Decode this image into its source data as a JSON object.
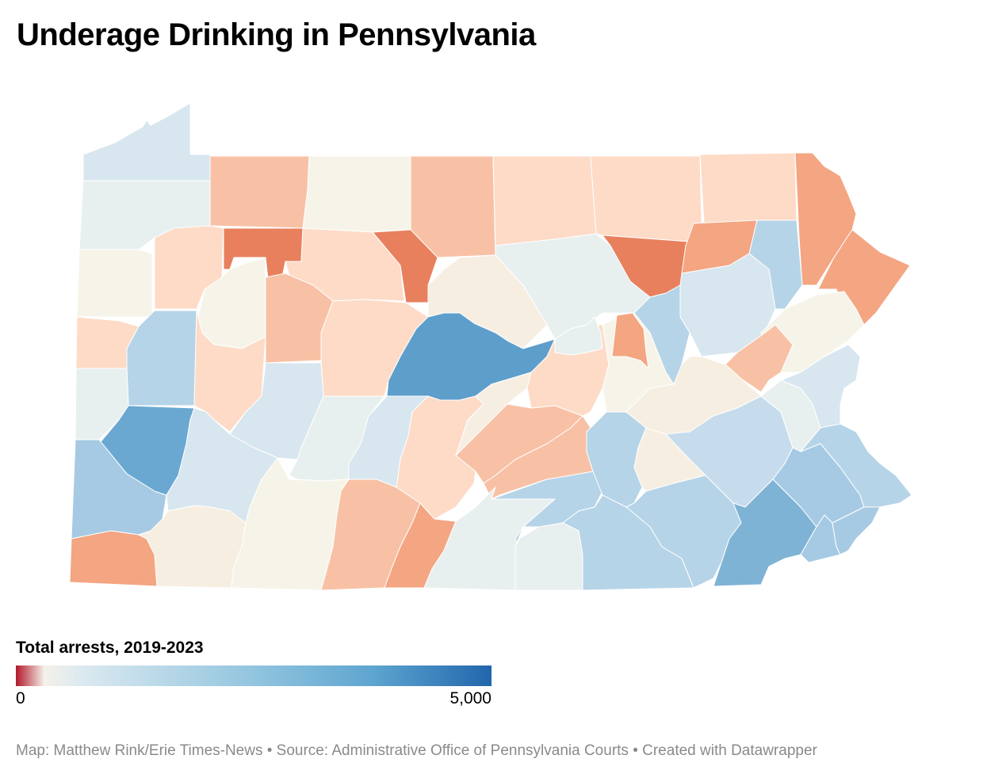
{
  "title": "Underage Drinking in Pennsylvania",
  "legend": {
    "title": "Total arrests, 2019-2023",
    "min_label": "0",
    "max_label": "5,000",
    "min_value": 0,
    "max_value": 5000,
    "gradient_colors": [
      "#b2182b",
      "#f4f1ea",
      "#d1e5f0",
      "#92c5de",
      "#6aaed6",
      "#2166ac"
    ]
  },
  "colors": {
    "deep_orange": "#e8805e",
    "orange": "#f4a582",
    "light_orange": "#f8c1a5",
    "peach": "#fddbc7",
    "cream": "#f7eee2",
    "ivory": "#f6f4e8",
    "light_gray_blue": "#e8efef",
    "pale_blue": "#d7e6ef",
    "light_blue": "#b6d4e7",
    "mid_blue": "#8dbfdc",
    "blue": "#6aa8d2",
    "strong_blue": "#5e9ecb"
  },
  "footer": {
    "text": "Map: Matthew Rink/Erie Times-News • Source: Administrative Office of Pennsylvania Courts • Created with Datawrapper"
  }
}
